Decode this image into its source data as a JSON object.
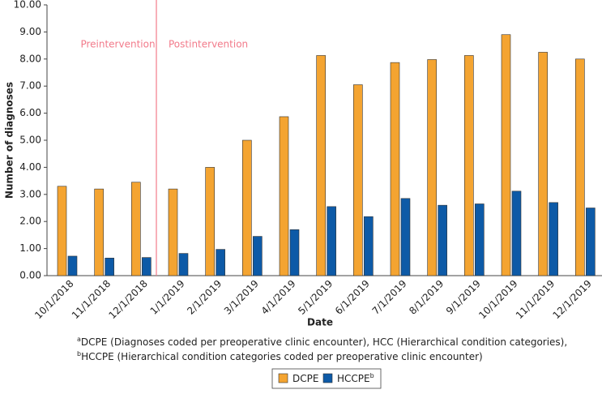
{
  "chart_data": {
    "type": "bar",
    "categories": [
      "10/1/2018",
      "11/1/2018",
      "12/1/2018",
      "1/1/2019",
      "2/1/2019",
      "3/1/2019",
      "4/1/2019",
      "5/1/2019",
      "6/1/2019",
      "7/1/2019",
      "8/1/2019",
      "9/1/2019",
      "10/1/2019",
      "11/1/2019",
      "12/1/2019"
    ],
    "series": [
      {
        "name": "DCPE",
        "color": "#f4a431",
        "values": [
          3.3,
          3.2,
          3.45,
          3.2,
          4.0,
          5.0,
          5.87,
          8.13,
          7.05,
          7.87,
          7.98,
          8.13,
          8.9,
          8.25,
          8.0
        ]
      },
      {
        "name": "HCCPE",
        "superscript": "b",
        "color": "#0d5aa7",
        "values": [
          0.72,
          0.65,
          0.67,
          0.82,
          0.97,
          1.45,
          1.7,
          2.55,
          2.18,
          2.85,
          2.6,
          2.65,
          3.12,
          2.7,
          2.5
        ]
      }
    ],
    "x_label": "Date",
    "y_label": "Number of diagnoses",
    "ylim": [
      0,
      10
    ],
    "yticks": [
      {
        "value": 0,
        "label": "0.00"
      },
      {
        "value": 1,
        "label": "1.00"
      },
      {
        "value": 2,
        "label": "2.00"
      },
      {
        "value": 3,
        "label": "3.00"
      },
      {
        "value": 4,
        "label": "4.00"
      },
      {
        "value": 5,
        "label": "5.00"
      },
      {
        "value": 6,
        "label": "6.00"
      },
      {
        "value": 7,
        "label": "7.00"
      },
      {
        "value": 8,
        "label": "8.00"
      },
      {
        "value": 9,
        "label": "9.00"
      },
      {
        "value": 10,
        "label": "10.00"
      }
    ],
    "divider": {
      "before": "1/1/2019",
      "color": "#f27a8a"
    },
    "annotations": [
      {
        "text": "Preintervention"
      },
      {
        "text": "Postintervention"
      }
    ],
    "footnotes": [
      {
        "marker": "a",
        "text": "DCPE (Diagnoses coded per preoperative clinic encounter), HCC (Hierarchical condition categories),"
      },
      {
        "marker": "b",
        "text": "HCCPE (Hierarchical condition categories coded per preoperative clinic encounter)"
      }
    ],
    "legend": "bottom"
  }
}
